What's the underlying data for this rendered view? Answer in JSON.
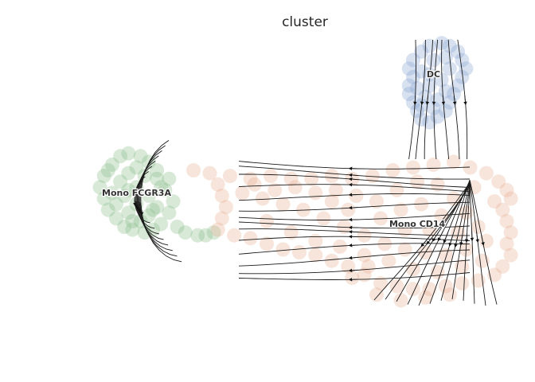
{
  "chart_data": {
    "type": "scatter",
    "title": "cluster",
    "xlabel": "",
    "ylabel": "",
    "axes_visible": false,
    "grid": false,
    "legend": "on data",
    "overlay": "velocity streamlines with arrowheads",
    "series": [
      {
        "name": "Mono FCGR3A",
        "color": "#8fbf8f",
        "label_pos": [
          -2.6,
          2.4
        ],
        "points": [
          [
            -3.4,
            3.1
          ],
          [
            -3.2,
            3.5
          ],
          [
            -3.0,
            3.8
          ],
          [
            -2.8,
            3.9
          ],
          [
            -2.5,
            3.8
          ],
          [
            -2.3,
            3.6
          ],
          [
            -2.1,
            3.3
          ],
          [
            -3.5,
            2.7
          ],
          [
            -3.4,
            2.3
          ],
          [
            -3.3,
            1.9
          ],
          [
            -3.1,
            1.6
          ],
          [
            -2.9,
            1.3
          ],
          [
            -2.7,
            1.2
          ],
          [
            -2.4,
            1.1
          ],
          [
            -2.2,
            1.2
          ],
          [
            -2.0,
            1.4
          ],
          [
            -1.8,
            1.8
          ],
          [
            -1.7,
            2.2
          ],
          [
            -1.9,
            2.6
          ],
          [
            -2.1,
            3.0
          ],
          [
            -3.0,
            2.9
          ],
          [
            -2.8,
            3.2
          ],
          [
            -2.6,
            3.4
          ],
          [
            -2.4,
            3.1
          ],
          [
            -2.6,
            2.7
          ],
          [
            -2.9,
            2.4
          ],
          [
            -3.1,
            2.1
          ],
          [
            -2.8,
            1.8
          ],
          [
            -2.5,
            1.5
          ],
          [
            -2.3,
            1.7
          ],
          [
            -2.1,
            2.0
          ],
          [
            -2.3,
            2.4
          ],
          [
            -2.6,
            2.1
          ],
          [
            -2.8,
            2.6
          ],
          [
            -3.2,
            2.5
          ],
          [
            -1.6,
            1.3
          ],
          [
            -1.4,
            1.1
          ],
          [
            -1.1,
            1.0
          ],
          [
            -0.9,
            1.0
          ],
          [
            -0.7,
            1.1
          ],
          [
            -2.0,
            2.7
          ],
          [
            -1.8,
            3.0
          ],
          [
            -3.3,
            3.3
          ],
          [
            -2.7,
            1.5
          ],
          [
            -2.2,
            1.9
          ]
        ]
      },
      {
        "name": "Mono CD14",
        "color": "#e9b295",
        "label_pos": [
          4.3,
          1.3
        ],
        "points": [
          [
            -0.8,
            3.2
          ],
          [
            -0.3,
            3.1
          ],
          [
            0.2,
            3.0
          ],
          [
            0.7,
            3.1
          ],
          [
            1.2,
            3.0
          ],
          [
            1.7,
            3.0
          ],
          [
            2.2,
            3.1
          ],
          [
            2.7,
            3.0
          ],
          [
            3.2,
            3.1
          ],
          [
            3.7,
            3.3
          ],
          [
            4.2,
            3.4
          ],
          [
            4.7,
            3.5
          ],
          [
            5.2,
            3.6
          ],
          [
            5.6,
            3.4
          ],
          [
            6.0,
            3.2
          ],
          [
            6.3,
            2.9
          ],
          [
            6.5,
            2.6
          ],
          [
            6.6,
            2.3
          ],
          [
            6.4,
            1.9
          ],
          [
            6.5,
            1.5
          ],
          [
            6.6,
            1.1
          ],
          [
            6.5,
            0.7
          ],
          [
            6.6,
            0.3
          ],
          [
            6.4,
            -0.1
          ],
          [
            6.2,
            -0.4
          ],
          [
            5.8,
            -0.6
          ],
          [
            5.4,
            -0.7
          ],
          [
            5.0,
            -0.8
          ],
          [
            4.6,
            -0.9
          ],
          [
            4.2,
            -0.9
          ],
          [
            3.8,
            -0.8
          ],
          [
            3.4,
            -0.7
          ],
          [
            3.0,
            -0.4
          ],
          [
            2.6,
            -0.1
          ],
          [
            2.2,
            0.1
          ],
          [
            1.8,
            0.3
          ],
          [
            1.4,
            0.4
          ],
          [
            1.0,
            0.5
          ],
          [
            0.6,
            0.7
          ],
          [
            0.2,
            0.9
          ],
          [
            -0.2,
            1.0
          ],
          [
            -0.6,
            1.2
          ],
          [
            -0.5,
            1.6
          ],
          [
            -0.4,
            2.0
          ],
          [
            -0.5,
            2.4
          ],
          [
            -0.6,
            2.8
          ],
          [
            0.0,
            2.5
          ],
          [
            0.5,
            2.3
          ],
          [
            1.0,
            2.1
          ],
          [
            1.5,
            1.9
          ],
          [
            2.0,
            1.6
          ],
          [
            2.5,
            1.3
          ],
          [
            3.0,
            1.0
          ],
          [
            3.5,
            0.7
          ],
          [
            4.0,
            0.5
          ],
          [
            4.5,
            0.4
          ],
          [
            5.0,
            0.3
          ],
          [
            5.5,
            0.5
          ],
          [
            6.0,
            0.8
          ],
          [
            5.8,
            1.3
          ],
          [
            5.5,
            1.8
          ],
          [
            5.2,
            2.3
          ],
          [
            4.8,
            2.8
          ],
          [
            4.3,
            2.9
          ],
          [
            3.8,
            2.6
          ],
          [
            3.3,
            2.2
          ],
          [
            2.8,
            2.4
          ],
          [
            2.3,
            2.6
          ],
          [
            1.8,
            2.5
          ],
          [
            1.3,
            2.7
          ],
          [
            0.8,
            2.6
          ],
          [
            0.3,
            2.8
          ],
          [
            0.6,
            1.5
          ],
          [
            1.2,
            1.1
          ],
          [
            1.8,
            0.8
          ],
          [
            2.4,
            0.6
          ],
          [
            3.0,
            0.3
          ],
          [
            3.6,
            0.1
          ],
          [
            4.2,
            -0.2
          ],
          [
            4.8,
            -0.3
          ],
          [
            5.4,
            -0.1
          ],
          [
            5.9,
            0.1
          ],
          [
            3.4,
            1.6
          ],
          [
            3.9,
            1.9
          ],
          [
            4.4,
            2.1
          ],
          [
            4.9,
            1.7
          ],
          [
            5.3,
            1.1
          ],
          [
            4.6,
            1.2
          ],
          [
            4.0,
            1.2
          ],
          [
            2.6,
            1.9
          ],
          [
            2.2,
            2.2
          ],
          [
            5.7,
            2.7
          ],
          [
            6.2,
            2.2
          ],
          [
            -1.2,
            3.3
          ],
          [
            3.1,
            -0.1
          ],
          [
            2.7,
            -0.5
          ],
          [
            3.3,
            -1.1
          ],
          [
            3.9,
            -1.3
          ],
          [
            4.5,
            -1.2
          ],
          [
            5.1,
            -1.1
          ]
        ]
      },
      {
        "name": "DC",
        "color": "#8ea9d3",
        "label_pos": [
          4.7,
          6.6
        ],
        "points": [
          [
            4.2,
            7.2
          ],
          [
            4.4,
            7.5
          ],
          [
            4.6,
            7.7
          ],
          [
            4.9,
            7.8
          ],
          [
            5.1,
            7.7
          ],
          [
            5.3,
            7.5
          ],
          [
            5.4,
            7.2
          ],
          [
            5.5,
            6.9
          ],
          [
            5.4,
            6.6
          ],
          [
            5.3,
            6.3
          ],
          [
            5.2,
            6.0
          ],
          [
            5.1,
            5.7
          ],
          [
            5.0,
            5.4
          ],
          [
            4.8,
            5.2
          ],
          [
            4.6,
            5.0
          ],
          [
            4.4,
            5.1
          ],
          [
            4.3,
            5.4
          ],
          [
            4.2,
            5.7
          ],
          [
            4.1,
            6.0
          ],
          [
            4.1,
            6.3
          ],
          [
            4.2,
            6.6
          ],
          [
            4.1,
            6.9
          ],
          [
            4.4,
            6.8
          ],
          [
            4.7,
            7.2
          ],
          [
            5.0,
            7.3
          ],
          [
            5.1,
            6.9
          ],
          [
            4.9,
            6.5
          ],
          [
            4.6,
            6.3
          ],
          [
            4.5,
            5.9
          ],
          [
            4.8,
            5.8
          ],
          [
            5.0,
            6.1
          ],
          [
            4.7,
            5.5
          ],
          [
            4.4,
            5.6
          ],
          [
            4.6,
            6.7
          ],
          [
            4.3,
            6.2
          ]
        ]
      }
    ],
    "xlim": [
      -4.0,
      7.0
    ],
    "ylim": [
      -2.5,
      8.2
    ]
  }
}
